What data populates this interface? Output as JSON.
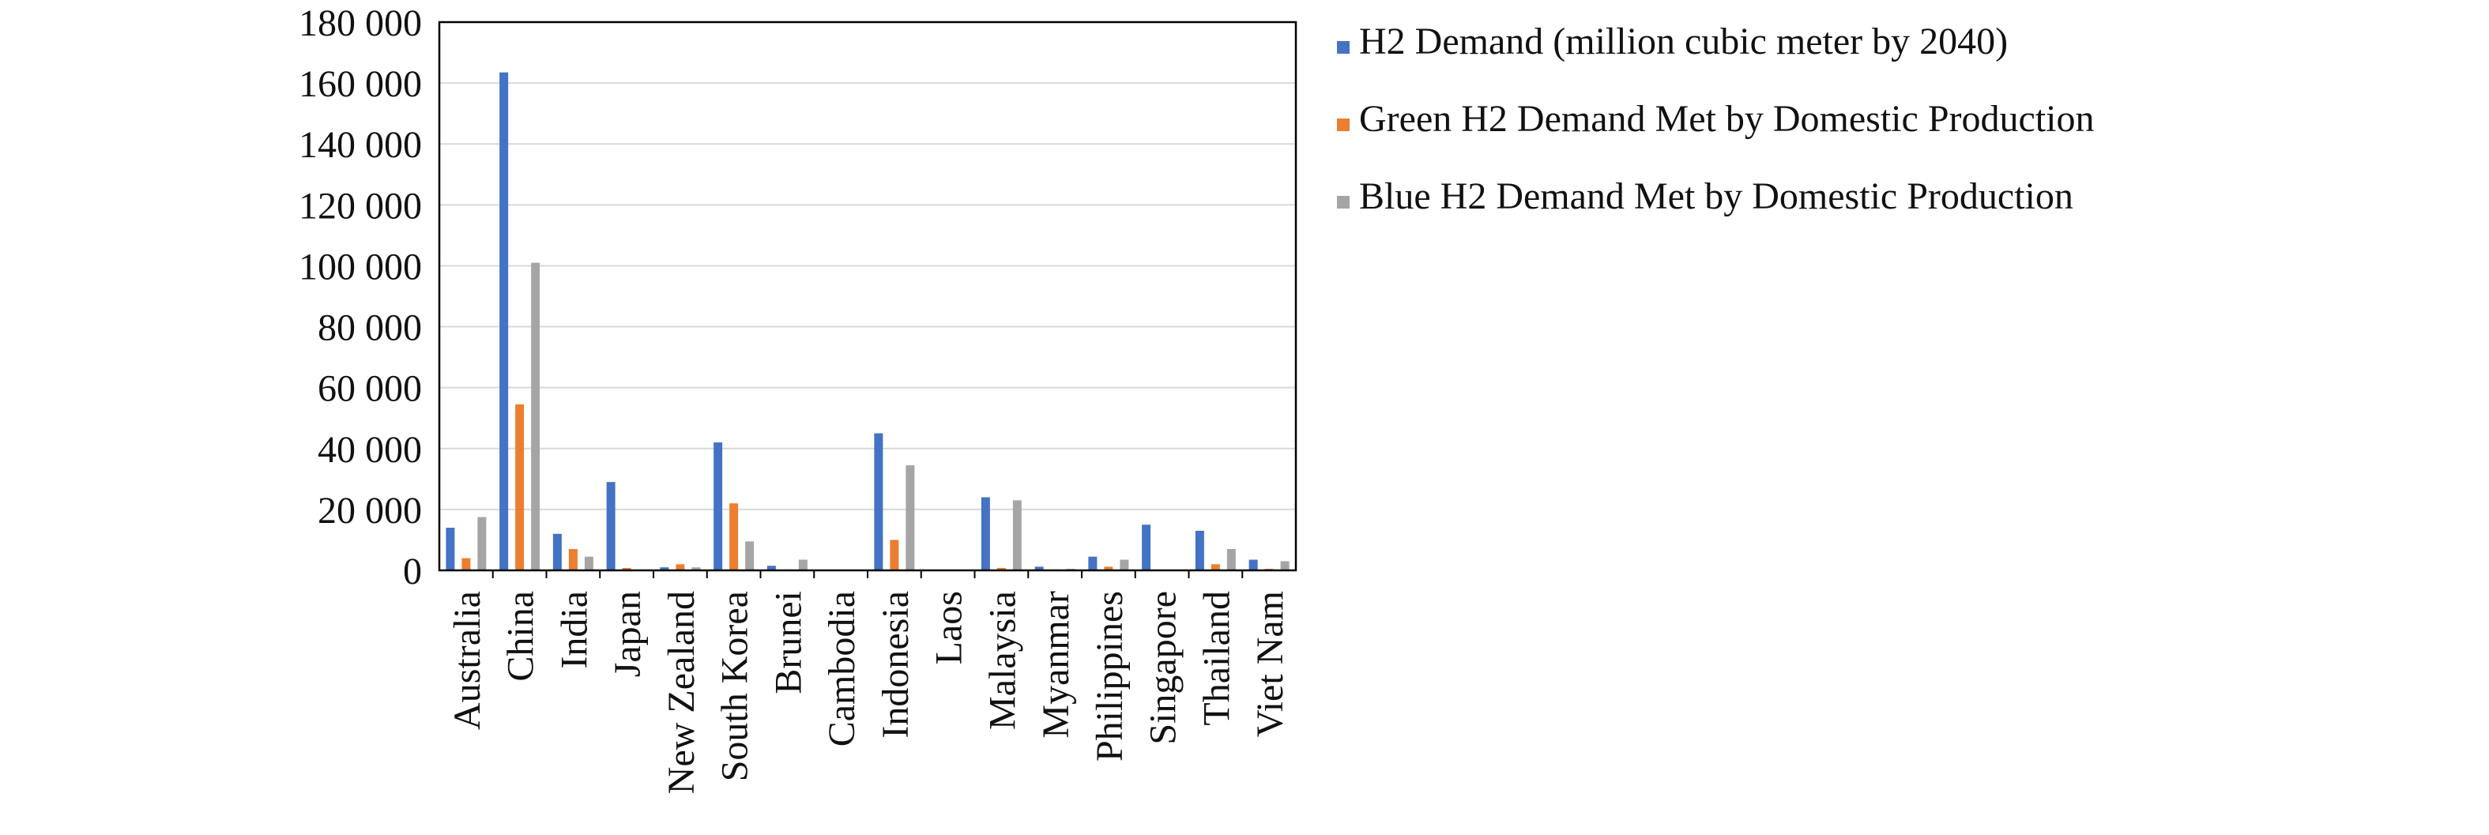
{
  "chart_data": {
    "type": "bar",
    "title": "",
    "xlabel": "",
    "ylabel": "",
    "ylim": [
      0,
      180000
    ],
    "yticks": [
      0,
      20000,
      40000,
      60000,
      80000,
      100000,
      120000,
      140000,
      160000,
      180000
    ],
    "ytick_labels": [
      "0",
      "20 000",
      "40 000",
      "60 000",
      "80 000",
      "100 000",
      "120 000",
      "140 000",
      "160 000",
      "180 000"
    ],
    "grid": true,
    "legend_position": "right",
    "categories": [
      "Australia",
      "China",
      "India",
      "Japan",
      "New Zealand",
      "South Korea",
      "Brunei",
      "Cambodia",
      "Indonesia",
      "Laos",
      "Malaysia",
      "Myanmar",
      "Philippines",
      "Singapore",
      "Thailand",
      "Viet Nam"
    ],
    "series": [
      {
        "name": "H2 Demand (million cubic meter by 2040)",
        "color": "#4472C4",
        "values": [
          14000,
          163500,
          12000,
          29000,
          1000,
          42000,
          1500,
          0,
          45000,
          0,
          24000,
          1200,
          4500,
          15000,
          13000,
          3500
        ]
      },
      {
        "name": "Green H2 Demand Met by Domestic Production",
        "color": "#ED7D31",
        "values": [
          4000,
          54500,
          7000,
          800,
          2000,
          22000,
          300,
          0,
          10000,
          0,
          800,
          300,
          1200,
          0,
          2000,
          500
        ]
      },
      {
        "name": "Blue H2 Demand Met by Domestic Production",
        "color": "#A5A5A5",
        "values": [
          17500,
          101000,
          4500,
          300,
          1000,
          9500,
          3500,
          0,
          34500,
          0,
          23000,
          500,
          3500,
          0,
          7000,
          3000
        ]
      }
    ]
  }
}
